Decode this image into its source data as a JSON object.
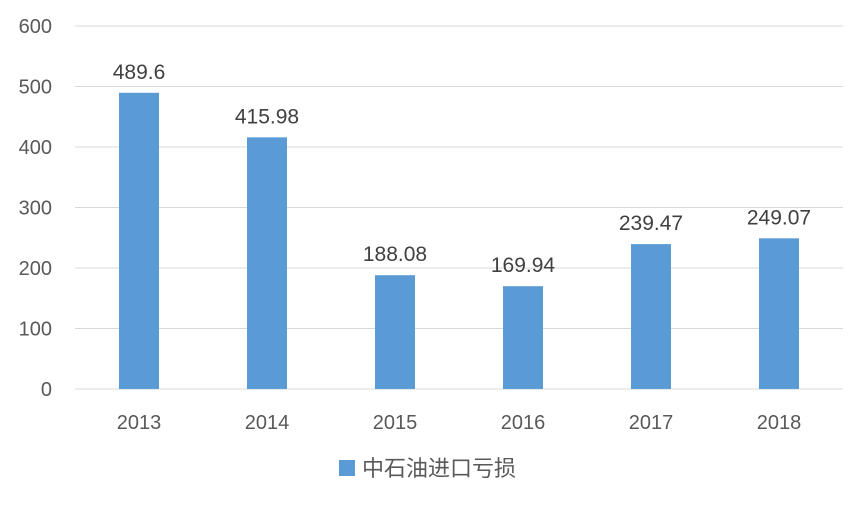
{
  "chart_data": {
    "type": "bar",
    "categories": [
      "2013",
      "2014",
      "2015",
      "2016",
      "2017",
      "2018"
    ],
    "series": [
      {
        "name": "中石油进口亏损",
        "values": [
          489.6,
          415.98,
          188.08,
          169.94,
          239.47,
          249.07
        ],
        "data_labels": [
          "489.6",
          "415.98",
          "188.08",
          "169.94",
          "239.47",
          "249.07"
        ],
        "color": "#5B9BD5"
      }
    ],
    "title": "",
    "xlabel": "",
    "ylabel": "",
    "ylim": [
      0,
      600
    ],
    "yticks": [
      "0",
      "100",
      "200",
      "300",
      "400",
      "500",
      "600"
    ],
    "grid": true,
    "legend": "bottom",
    "colors": {
      "gridline": "#D9D9D9",
      "text": "#595959",
      "label": "#404040"
    }
  }
}
